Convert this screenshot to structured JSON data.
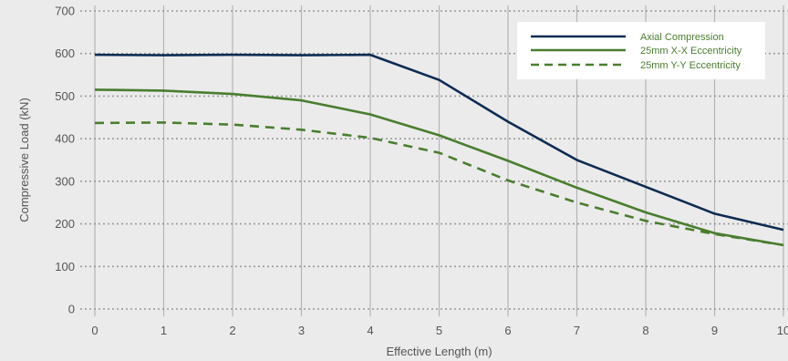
{
  "chart_data": {
    "type": "line",
    "xlabel": "Effective Length (m)",
    "ylabel": "Compressive Load (kN)",
    "xlim": [
      0,
      10
    ],
    "ylim": [
      0,
      700
    ],
    "x_ticks": [
      "0",
      "1",
      "2",
      "3",
      "4",
      "5",
      "6",
      "7",
      "8",
      "9",
      "10"
    ],
    "y_ticks": [
      "0",
      "100",
      "200",
      "300",
      "400",
      "500",
      "600",
      "700"
    ],
    "grid": true,
    "legend_position": "top-right",
    "series": [
      {
        "name": "Axial Compression",
        "color": "#0d2b52",
        "style": "solid",
        "x": [
          0,
          1,
          2,
          3,
          4,
          5,
          6,
          7,
          8,
          9,
          10
        ],
        "y": [
          597,
          596,
          597,
          596,
          597,
          538,
          440,
          350,
          287,
          224,
          186
        ]
      },
      {
        "name": "25mm X-X Eccentricity",
        "color": "#4a7d2f",
        "style": "solid",
        "x": [
          0,
          1,
          2,
          3,
          4,
          5,
          6,
          7,
          8,
          9,
          10
        ],
        "y": [
          515,
          513,
          505,
          490,
          457,
          408,
          348,
          285,
          227,
          178,
          150
        ]
      },
      {
        "name": "25mm Y-Y Eccentricity",
        "color": "#4a7d2f",
        "style": "dashed",
        "x": [
          0,
          1,
          2,
          3,
          4,
          5,
          6,
          7,
          8,
          9,
          10
        ],
        "y": [
          437,
          438,
          433,
          421,
          402,
          367,
          302,
          250,
          207,
          176,
          150
        ]
      }
    ]
  }
}
